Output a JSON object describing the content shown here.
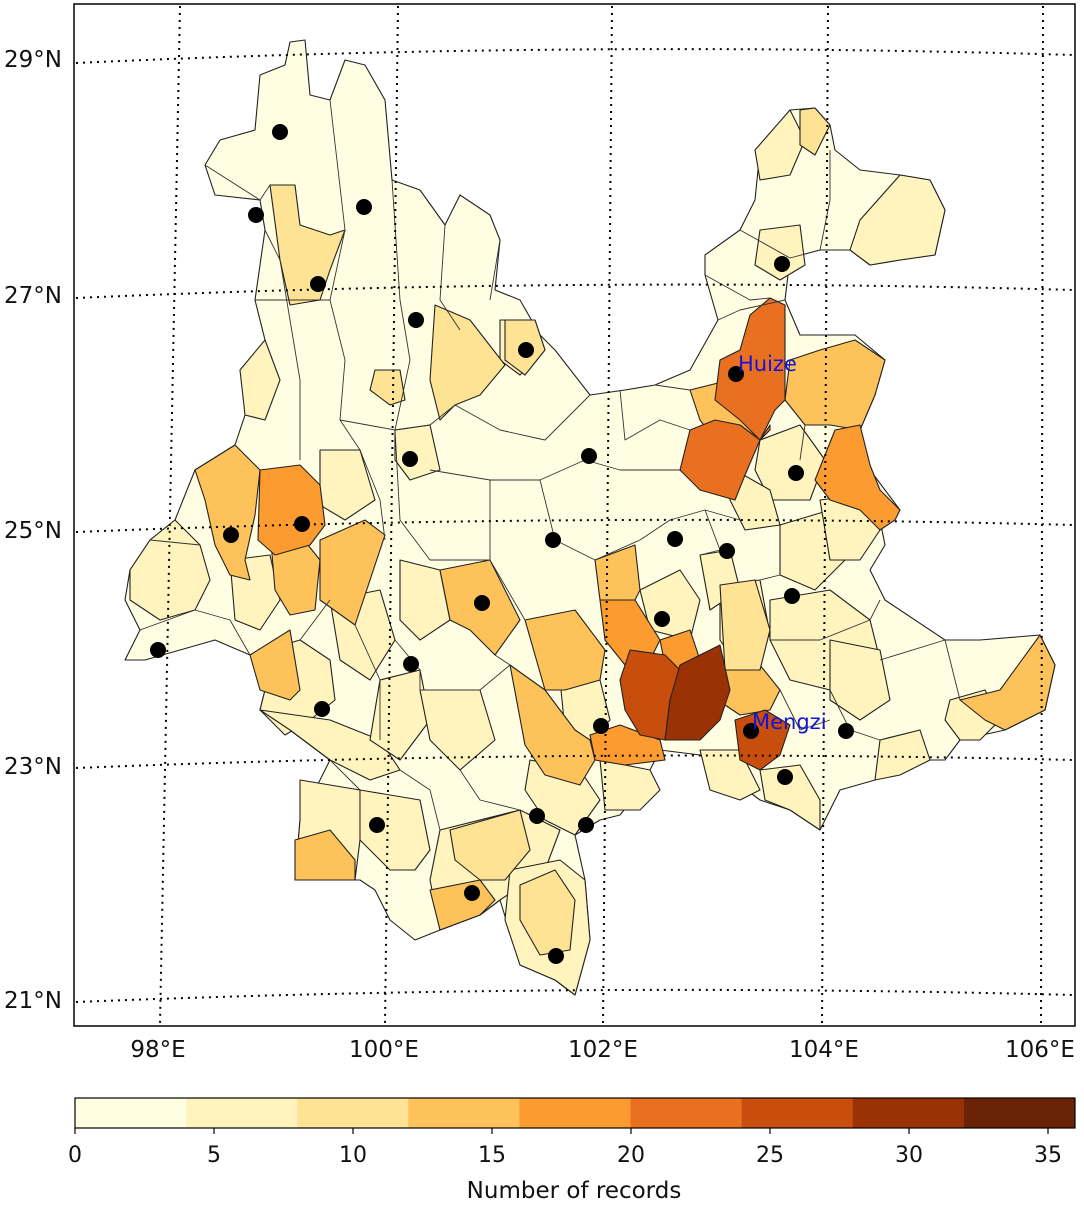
{
  "map": {
    "legend_title": "Number of records",
    "lat_labels": [
      "29°N",
      "27°N",
      "25°N",
      "23°N",
      "21°N"
    ],
    "lon_labels": [
      "98°E",
      "100°E",
      "102°E",
      "104°E",
      "106°E"
    ],
    "annotations": [
      "Huize",
      "Mengzi"
    ],
    "colorbar": {
      "ticks": [
        "0",
        "5",
        "10",
        "15",
        "20",
        "25",
        "30",
        "35"
      ],
      "colors": [
        "#fffee3",
        "#fff4bd",
        "#fee394",
        "#fdc25a",
        "#fc9b2f",
        "#ea7021",
        "#c84e0d",
        "#9b3206",
        "#6a2306"
      ]
    },
    "fill_colors": {
      "lightest": "#fffee3",
      "light": "#fff4bd",
      "pale": "#fee394",
      "mid": "#fdc25a",
      "orange": "#fc9b2f",
      "deep_orange": "#ea7021",
      "rust": "#c84e0d",
      "brown": "#9b3206"
    },
    "station_marker": "black-dot"
  }
}
